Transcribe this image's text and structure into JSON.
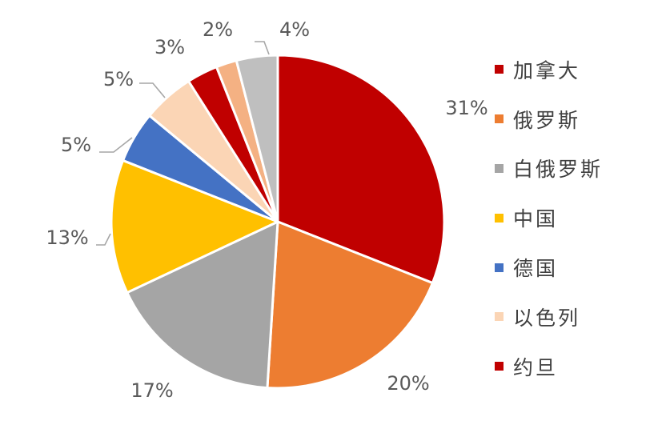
{
  "chart_data": {
    "type": "pie",
    "categories": [
      "加拿大",
      "俄罗斯",
      "白俄罗斯",
      "中国",
      "德国",
      "以色列",
      "约旦",
      "",
      ""
    ],
    "values": [
      31,
      20,
      17,
      13,
      5,
      5,
      3,
      2,
      4
    ],
    "labels": [
      "31%",
      "20%",
      "17%",
      "13%",
      "5%",
      "5%",
      "3%",
      "2%",
      "4%"
    ],
    "colors": [
      "#c00000",
      "#ed7d31",
      "#a5a5a5",
      "#ffc000",
      "#4472c4",
      "#fbd5b5",
      "#c00000",
      "#f4b183",
      "#bfbfbf"
    ],
    "legend": [
      {
        "label": "加拿大",
        "color": "#c00000"
      },
      {
        "label": "俄罗斯",
        "color": "#ed7d31"
      },
      {
        "label": "白俄罗斯",
        "color": "#a5a5a5"
      },
      {
        "label": "中国",
        "color": "#ffc000"
      },
      {
        "label": "德国",
        "color": "#4472c4"
      },
      {
        "label": "以色列",
        "color": "#fbd5b5"
      },
      {
        "label": "约旦",
        "color": "#c00000"
      }
    ],
    "legend_position": "right",
    "start_angle": "12 o'clock",
    "direction": "clockwise"
  }
}
